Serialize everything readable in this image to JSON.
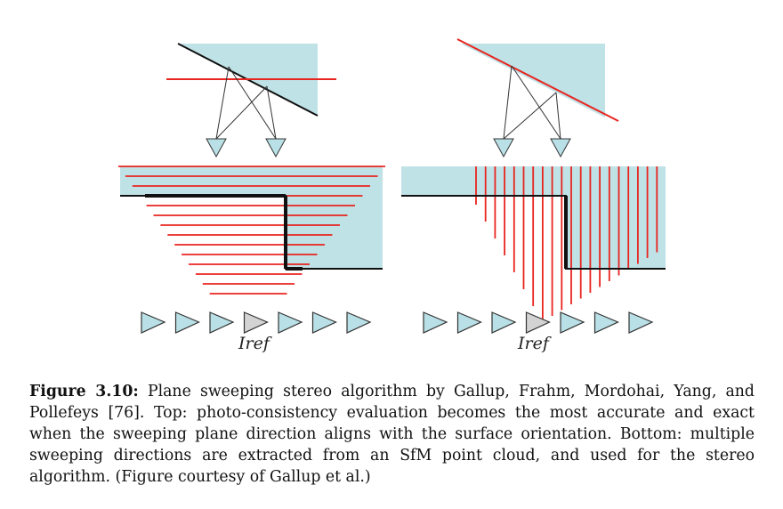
{
  "figure": {
    "left_panel": {
      "ref_label": "Iref"
    },
    "right_panel": {
      "ref_label": "Iref"
    },
    "colors": {
      "surface_fill": "#bfe2e6",
      "sweep_plane": "#e8251f",
      "surface_edge": "#111111",
      "camera_fill": "#b9e0e6",
      "ref_camera_fill": "#d3d3d3"
    }
  },
  "caption": {
    "label": "Figure 3.10:",
    "text": " Plane sweeping stereo algorithm by Gallup, Frahm, Mordohai, Yang, and Pollefeys [76]. Top: photo-consistency evaluation becomes the most accurate and exact when the sweeping plane direction aligns with the surface orientation. Bottom: multiple sweeping directions are extracted from an SfM point cloud, and used for the stereo algorithm. (Figure courtesy of Gallup et al.)"
  }
}
